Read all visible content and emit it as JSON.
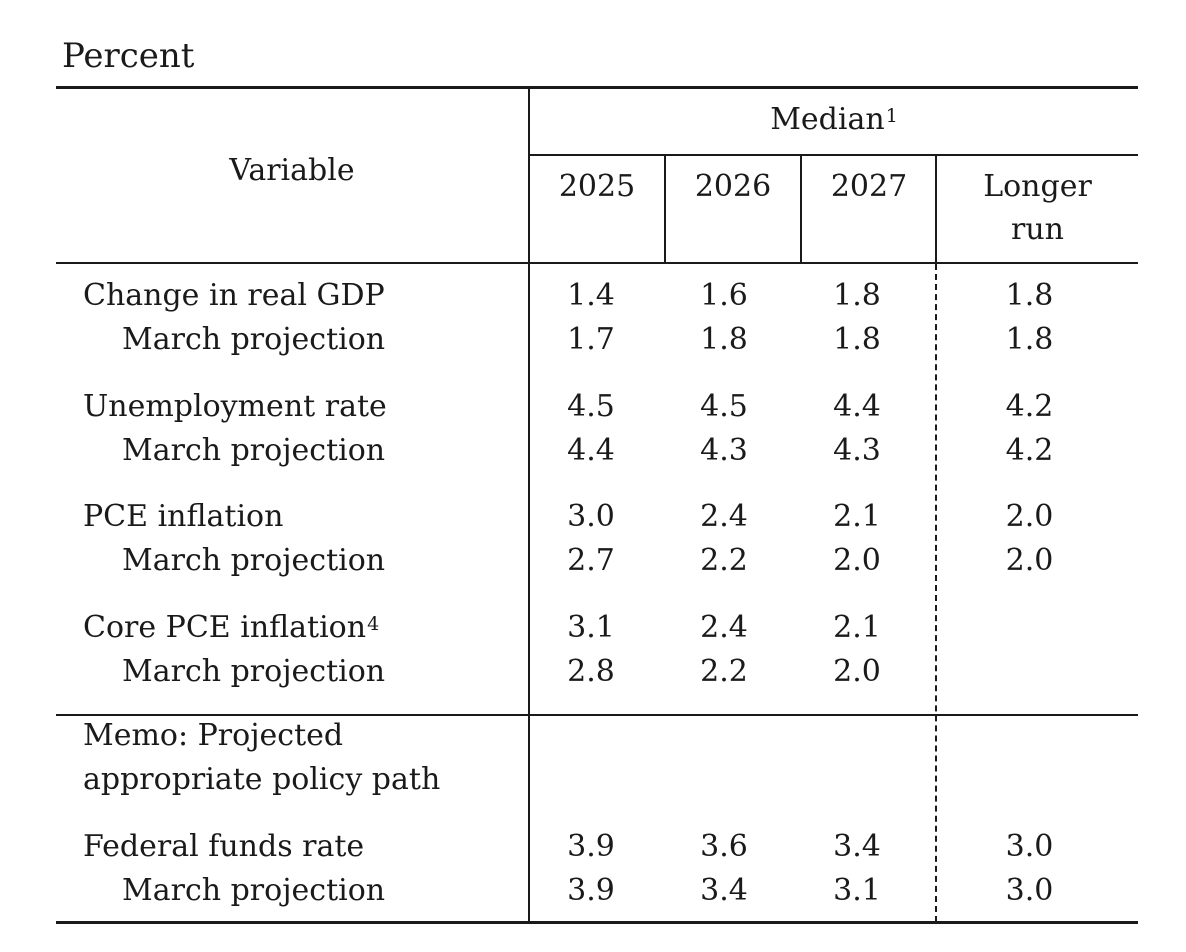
{
  "caption": "Percent",
  "header": {
    "variable": "Variable",
    "group": "Median",
    "group_footnote": "1",
    "years": [
      "2025",
      "2026",
      "2027"
    ],
    "longer_run_line1": "Longer",
    "longer_run_line2": "run"
  },
  "rows": [
    {
      "label": "Change in real GDP",
      "footnote": "",
      "values": [
        "1.4",
        "1.6",
        "1.8",
        "1.8"
      ]
    },
    {
      "label": "March projection",
      "footnote": "",
      "values": [
        "1.7",
        "1.8",
        "1.8",
        "1.8"
      ]
    },
    {
      "label": "Unemployment rate",
      "footnote": "",
      "values": [
        "4.5",
        "4.5",
        "4.4",
        "4.2"
      ]
    },
    {
      "label": "March projection",
      "footnote": "",
      "values": [
        "4.4",
        "4.3",
        "4.3",
        "4.2"
      ]
    },
    {
      "label": "PCE inflation",
      "footnote": "",
      "values": [
        "3.0",
        "2.4",
        "2.1",
        "2.0"
      ]
    },
    {
      "label": "March projection",
      "footnote": "",
      "values": [
        "2.7",
        "2.2",
        "2.0",
        "2.0"
      ]
    },
    {
      "label": "Core PCE inflation",
      "footnote": "4",
      "values": [
        "3.1",
        "2.4",
        "2.1",
        ""
      ]
    },
    {
      "label": "March projection",
      "footnote": "",
      "values": [
        "2.8",
        "2.2",
        "2.0",
        ""
      ]
    }
  ],
  "memo": {
    "line1": "Memo: Projected",
    "line2": "appropriate policy path"
  },
  "memo_rows": [
    {
      "label": "Federal funds rate",
      "values": [
        "3.9",
        "3.6",
        "3.4",
        "3.0"
      ]
    },
    {
      "label": "March projection",
      "values": [
        "3.9",
        "3.4",
        "3.1",
        "3.0"
      ]
    }
  ]
}
